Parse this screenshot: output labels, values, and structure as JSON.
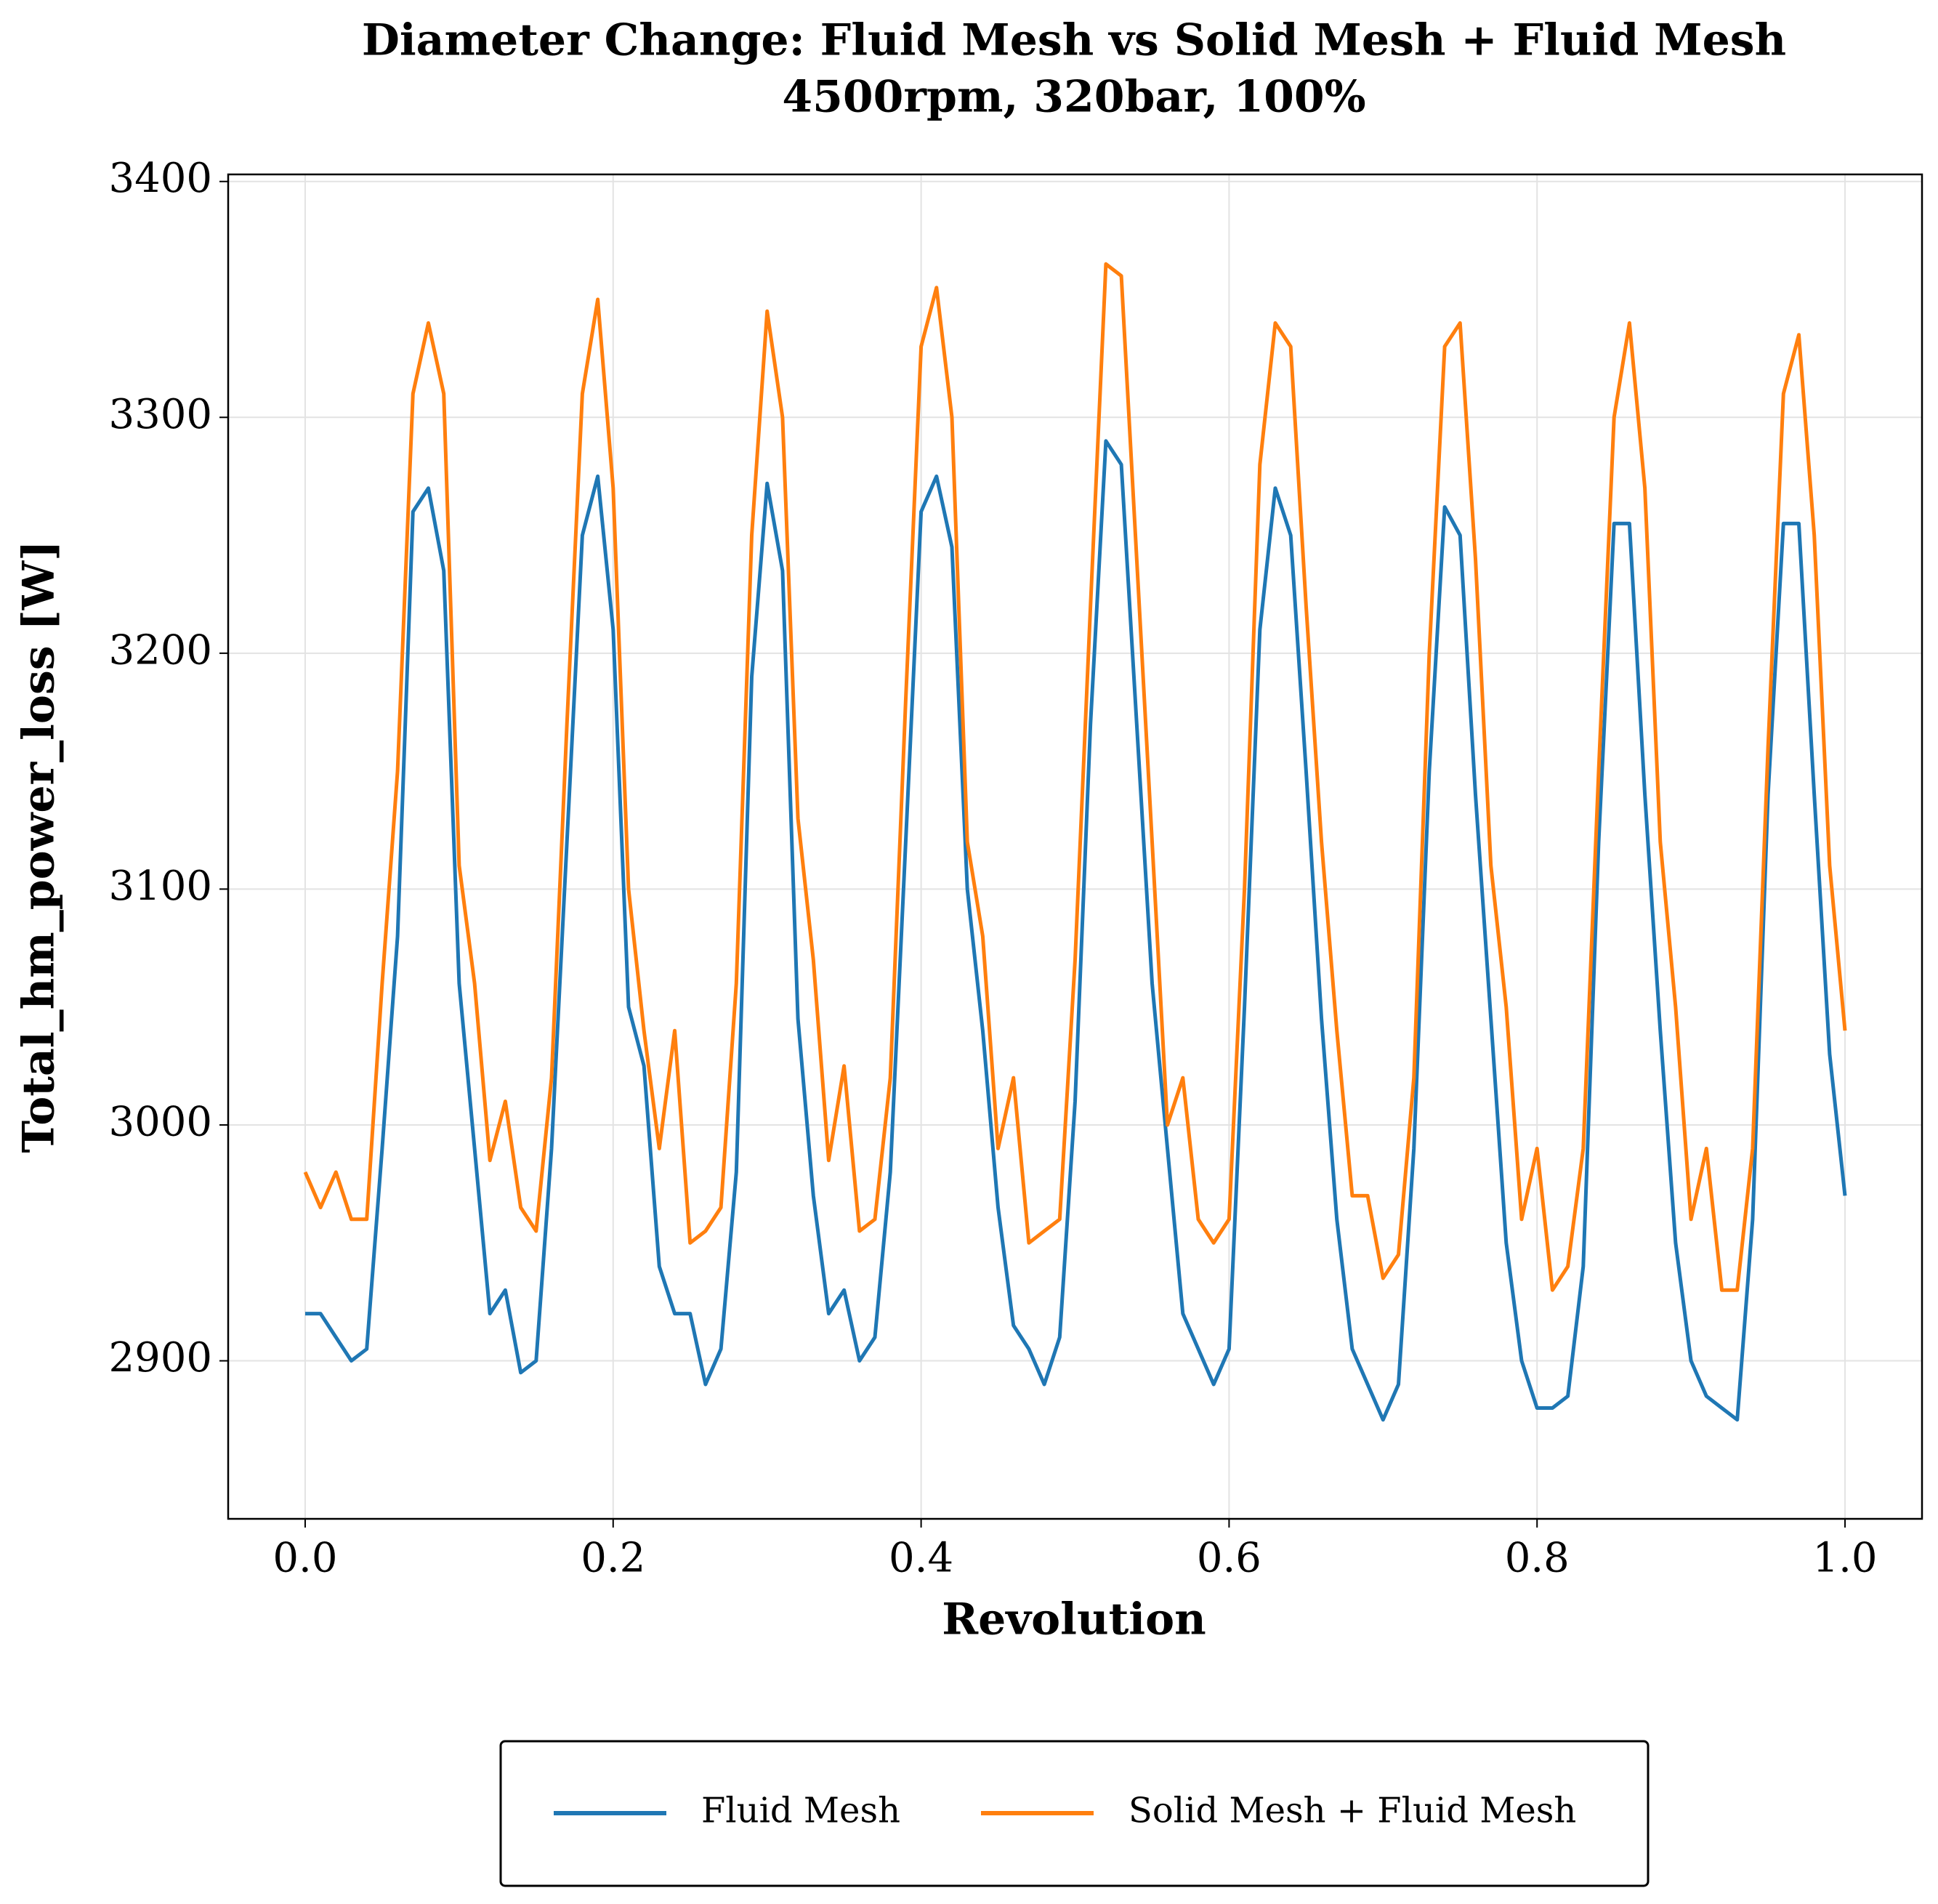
{
  "chart_data": {
    "type": "line",
    "title": "Diameter Change: Fluid Mesh vs Solid Mesh + Fluid Mesh",
    "subtitle": "4500rpm, 320bar, 100%",
    "x_label": "Revolution",
    "y_label": "Total_hm_power_loss [W]",
    "x": [
      0,
      0.01,
      0.02,
      0.03,
      0.04,
      0.05,
      0.06,
      0.07,
      0.08,
      0.09,
      0.1,
      0.11,
      0.12,
      0.13,
      0.14,
      0.15,
      0.16,
      0.17,
      0.18,
      0.19,
      0.2,
      0.21,
      0.22,
      0.23,
      0.24,
      0.25,
      0.26,
      0.27,
      0.28,
      0.29,
      0.3,
      0.31,
      0.32,
      0.33,
      0.34,
      0.35,
      0.36,
      0.37,
      0.38,
      0.39,
      0.4,
      0.41,
      0.42,
      0.43,
      0.44,
      0.45,
      0.46,
      0.47,
      0.48,
      0.49,
      0.5,
      0.51,
      0.52,
      0.53,
      0.54,
      0.55,
      0.56,
      0.57,
      0.58,
      0.59,
      0.6,
      0.61,
      0.62,
      0.63,
      0.64,
      0.65,
      0.66,
      0.67,
      0.68,
      0.69,
      0.7,
      0.71,
      0.72,
      0.73,
      0.74,
      0.75,
      0.76,
      0.77,
      0.78,
      0.79,
      0.8,
      0.81,
      0.82,
      0.83,
      0.84,
      0.85,
      0.86,
      0.87,
      0.88,
      0.89,
      0.9,
      0.91,
      0.92,
      0.93,
      0.94,
      0.95,
      0.96,
      0.97,
      0.98,
      0.99,
      1
    ],
    "series": [
      {
        "name": "Fluid Mesh",
        "color": "#1f77b4",
        "values": [
          2920,
          2920,
          2910,
          2900,
          2905,
          2990,
          3080,
          3260,
          3270,
          3235,
          3060,
          2990,
          2920,
          2930,
          2895,
          2900,
          2990,
          3120,
          3250,
          3275,
          3210,
          3050,
          3025,
          2940,
          2920,
          2920,
          2890,
          2905,
          2980,
          3190,
          3272,
          3235,
          3045,
          2970,
          2920,
          2930,
          2900,
          2910,
          2980,
          3120,
          3260,
          3275,
          3245,
          3100,
          3040,
          2965,
          2915,
          2905,
          2890,
          2910,
          3010,
          3170,
          3290,
          3280,
          3170,
          3060,
          2990,
          2920,
          2905,
          2890,
          2905,
          3050,
          3210,
          3270,
          3250,
          3150,
          3045,
          2960,
          2905,
          2890,
          2875,
          2890,
          2990,
          3150,
          3262,
          3250,
          3140,
          3045,
          2950,
          2900,
          2880,
          2880,
          2885,
          2940,
          3120,
          3255,
          3255,
          3140,
          3040,
          2950,
          2900,
          2885,
          2880,
          2875,
          2960,
          3140,
          3255,
          3255,
          3140,
          3030,
          2970
        ]
      },
      {
        "name": "Solid Mesh + Fluid Mesh",
        "color": "#ff7f0e",
        "values": [
          2980,
          2965,
          2980,
          2960,
          2960,
          3060,
          3150,
          3310,
          3340,
          3310,
          3110,
          3060,
          2985,
          3010,
          2965,
          2955,
          3020,
          3170,
          3310,
          3350,
          3270,
          3100,
          3040,
          2990,
          3040,
          2950,
          2955,
          2965,
          3060,
          3250,
          3345,
          3300,
          3130,
          3070,
          2985,
          3025,
          2955,
          2960,
          3020,
          3180,
          3330,
          3355,
          3300,
          3120,
          3080,
          2990,
          3020,
          2950,
          2955,
          2960,
          3070,
          3220,
          3365,
          3360,
          3240,
          3120,
          3000,
          3020,
          2960,
          2950,
          2960,
          3100,
          3280,
          3340,
          3330,
          3220,
          3120,
          3040,
          2970,
          2970,
          2935,
          2945,
          3020,
          3200,
          3330,
          3340,
          3240,
          3110,
          3050,
          2960,
          2990,
          2930,
          2940,
          2990,
          3150,
          3300,
          3340,
          3270,
          3120,
          3050,
          2960,
          2990,
          2930,
          2930,
          2990,
          3160,
          3310,
          3335,
          3250,
          3110,
          3040
        ]
      }
    ],
    "xlim": [
      -0.05,
      1.05
    ],
    "ylim": [
      2833,
      3403
    ],
    "xticks": [
      {
        "value": 0,
        "label": "0.0"
      },
      0.2,
      0.4,
      0.6,
      0.8,
      {
        "value": 1,
        "label": "1.0"
      }
    ],
    "yticks": [
      2900,
      3000,
      3100,
      3200,
      3300,
      3400
    ],
    "grid": true,
    "legend": "bottom"
  }
}
